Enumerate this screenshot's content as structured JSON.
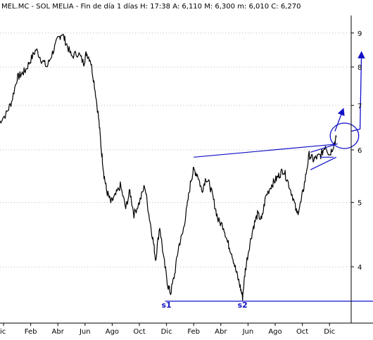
{
  "header": "MEL.MC - SOL MELIA - Fin de día 1 días H: 17:38 A: 6,110 M: 6,300 m: 6,010 C: 6,270",
  "chart_data": {
    "type": "line",
    "symbol": "MEL.MC",
    "name": "SOL MELIA",
    "period": "Fin de día 1 días",
    "last_bar": {
      "H": "17:38",
      "A": "6,110",
      "M": "6,300",
      "m": "6,010",
      "C": "6,270"
    },
    "scale": "log",
    "ylim": [
      3.5,
      9.4
    ],
    "xlim": [
      0,
      24
    ],
    "y_ticks": [
      {
        "value": 4,
        "label": "4"
      },
      {
        "value": 5,
        "label": "5"
      },
      {
        "value": 6,
        "label": "6"
      },
      {
        "value": 7,
        "label": "7"
      },
      {
        "value": 8,
        "label": "8"
      },
      {
        "value": 9,
        "label": "9"
      }
    ],
    "x_ticks": [
      {
        "t": 0,
        "label": "ic"
      },
      {
        "t": 2,
        "label": "Feb"
      },
      {
        "t": 4,
        "label": "Abr"
      },
      {
        "t": 6,
        "label": "Jun"
      },
      {
        "t": 8,
        "label": "Ago"
      },
      {
        "t": 10,
        "label": "Oct"
      },
      {
        "t": 12,
        "label": "Dic"
      },
      {
        "t": 14,
        "label": "Feb"
      },
      {
        "t": 16,
        "label": "Abr"
      },
      {
        "t": 18,
        "label": "Jun"
      },
      {
        "t": 20,
        "label": "Ago"
      },
      {
        "t": 22,
        "label": "Oct"
      },
      {
        "t": 24,
        "label": "Dic"
      }
    ],
    "price_path": [
      [
        -0.35,
        6.6
      ],
      [
        0.2,
        6.8
      ],
      [
        0.6,
        7.1
      ],
      [
        1.0,
        7.7
      ],
      [
        1.3,
        7.8
      ],
      [
        1.6,
        7.9
      ],
      [
        2.0,
        8.2
      ],
      [
        2.4,
        8.5
      ],
      [
        2.8,
        8.2
      ],
      [
        3.2,
        8.0
      ],
      [
        3.6,
        8.4
      ],
      [
        4.0,
        8.8
      ],
      [
        4.3,
        9.0
      ],
      [
        4.6,
        8.7
      ],
      [
        5.0,
        8.3
      ],
      [
        5.5,
        8.4
      ],
      [
        5.9,
        8.1
      ],
      [
        6.1,
        8.4
      ],
      [
        6.4,
        8.2
      ],
      [
        6.7,
        7.5
      ],
      [
        7.0,
        6.7
      ],
      [
        7.2,
        6.0
      ],
      [
        7.4,
        5.5
      ],
      [
        7.6,
        5.2
      ],
      [
        7.9,
        5.0
      ],
      [
        8.2,
        5.1
      ],
      [
        8.6,
        5.3
      ],
      [
        9.0,
        4.9
      ],
      [
        9.3,
        5.2
      ],
      [
        9.6,
        4.8
      ],
      [
        10.0,
        5.0
      ],
      [
        10.4,
        5.3
      ],
      [
        10.7,
        4.8
      ],
      [
        11.0,
        4.4
      ],
      [
        11.2,
        4.1
      ],
      [
        11.5,
        4.6
      ],
      [
        11.8,
        4.1
      ],
      [
        12.1,
        3.75
      ],
      [
        12.3,
        3.65
      ],
      [
        12.6,
        3.9
      ],
      [
        12.9,
        4.3
      ],
      [
        13.2,
        4.5
      ],
      [
        13.5,
        4.9
      ],
      [
        13.8,
        5.4
      ],
      [
        14.0,
        5.6
      ],
      [
        14.3,
        5.5
      ],
      [
        14.6,
        5.2
      ],
      [
        14.9,
        5.45
      ],
      [
        15.2,
        5.3
      ],
      [
        15.5,
        5.0
      ],
      [
        15.8,
        4.7
      ],
      [
        16.2,
        4.6
      ],
      [
        16.5,
        4.35
      ],
      [
        16.8,
        4.2
      ],
      [
        17.1,
        3.95
      ],
      [
        17.4,
        3.75
      ],
      [
        17.6,
        3.6
      ],
      [
        17.8,
        3.95
      ],
      [
        18.1,
        4.3
      ],
      [
        18.4,
        4.6
      ],
      [
        18.7,
        4.8
      ],
      [
        19.0,
        4.7
      ],
      [
        19.3,
        5.1
      ],
      [
        19.7,
        5.3
      ],
      [
        20.0,
        5.4
      ],
      [
        20.3,
        5.5
      ],
      [
        20.6,
        5.6
      ],
      [
        20.9,
        5.4
      ],
      [
        21.3,
        5.1
      ],
      [
        21.6,
        4.8
      ],
      [
        21.9,
        5.0
      ],
      [
        22.2,
        5.4
      ],
      [
        22.5,
        5.9
      ],
      [
        22.8,
        5.8
      ],
      [
        23.1,
        5.85
      ],
      [
        23.4,
        5.9
      ],
      [
        23.7,
        6.1
      ],
      [
        24.0,
        5.9
      ],
      [
        24.3,
        6.1
      ],
      [
        24.5,
        6.27
      ]
    ],
    "annotations": [
      {
        "type": "line",
        "name": "neckline",
        "points": [
          [
            14.0,
            5.85
          ],
          [
            24.5,
            6.12
          ]
        ]
      },
      {
        "type": "line",
        "name": "support-line",
        "points": [
          [
            11.9,
            3.55
          ],
          [
            28.0,
            3.55
          ]
        ]
      },
      {
        "type": "line",
        "name": "flag-upper",
        "points": [
          [
            22.6,
            5.95
          ],
          [
            24.6,
            6.13
          ]
        ]
      },
      {
        "type": "line",
        "name": "flag-lower",
        "points": [
          [
            22.6,
            5.6
          ],
          [
            24.5,
            5.85
          ]
        ]
      },
      {
        "type": "line",
        "name": "flag-mid",
        "points": [
          [
            23.3,
            5.85
          ],
          [
            24.3,
            5.85
          ]
        ]
      },
      {
        "type": "ellipse",
        "name": "breakout-circle",
        "center": [
          25.1,
          6.3
        ],
        "rx_t": 1.05,
        "ry_factor": 1.045
      },
      {
        "type": "arrow",
        "name": "arrow-short",
        "points": [
          [
            24.4,
            6.4
          ],
          [
            25.0,
            6.9
          ]
        ]
      },
      {
        "type": "arrow",
        "name": "arrow-long",
        "points": [
          [
            25.6,
            6.4
          ],
          [
            26.25,
            6.45
          ],
          [
            26.35,
            8.4
          ]
        ]
      }
    ],
    "labels": [
      {
        "name": "s1-label",
        "text": "s1",
        "t": 12.0,
        "y": 3.47
      },
      {
        "name": "s2-label",
        "text": "s2",
        "t": 17.6,
        "y": 3.47
      }
    ],
    "colors": {
      "price": "#000000",
      "annotation": "#1010c8",
      "axis": "#000000",
      "grid": "#bbbbbb"
    },
    "grid": "dotted-horizontal"
  }
}
